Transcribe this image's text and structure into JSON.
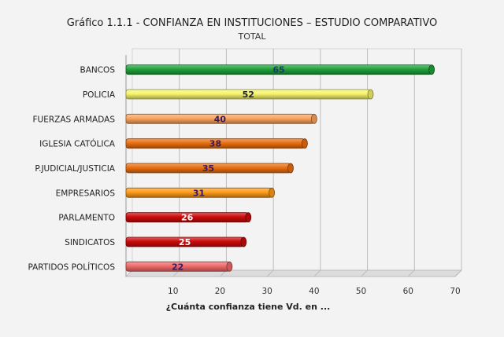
{
  "chart_data": {
    "type": "bar",
    "orientation": "horizontal",
    "title": "Gráfico 1.1.1 - CONFIANZA EN INSTITUCIONES – ESTUDIO COMPARATIVO",
    "subtitle": "TOTAL",
    "xlabel": "¿Cuánta confianza tiene Vd. en ...",
    "ylabel": "",
    "xlim": [
      0,
      70
    ],
    "xticks": [
      10,
      20,
      30,
      40,
      50,
      60,
      70
    ],
    "grid": true,
    "categories": [
      "BANCOS",
      "POLICIA",
      "FUERZAS ARMADAS",
      "IGLESIA CATÓLICA",
      "P.JUDICIAL/JUSTICIA",
      "EMPRESARIOS",
      "PARLAMENTO",
      "SINDICATOS",
      "PARTIDOS POLÍTICOS"
    ],
    "values": [
      65,
      52,
      40,
      38,
      35,
      31,
      26,
      25,
      22
    ],
    "colors": [
      "#1fa23a",
      "#f6f56c",
      "#fba45d",
      "#ea6f10",
      "#ea6f10",
      "#fd9c1a",
      "#cc0b0b",
      "#cc0b0b",
      "#f06a6a"
    ],
    "label_colors": [
      "#1f3b6b",
      "#1f1f3f",
      "#3a1a5a",
      "#3a1a5a",
      "#3a1a5a",
      "#3a1a5a",
      "#ffffff",
      "#ffffff",
      "#3a1a5a"
    ]
  }
}
